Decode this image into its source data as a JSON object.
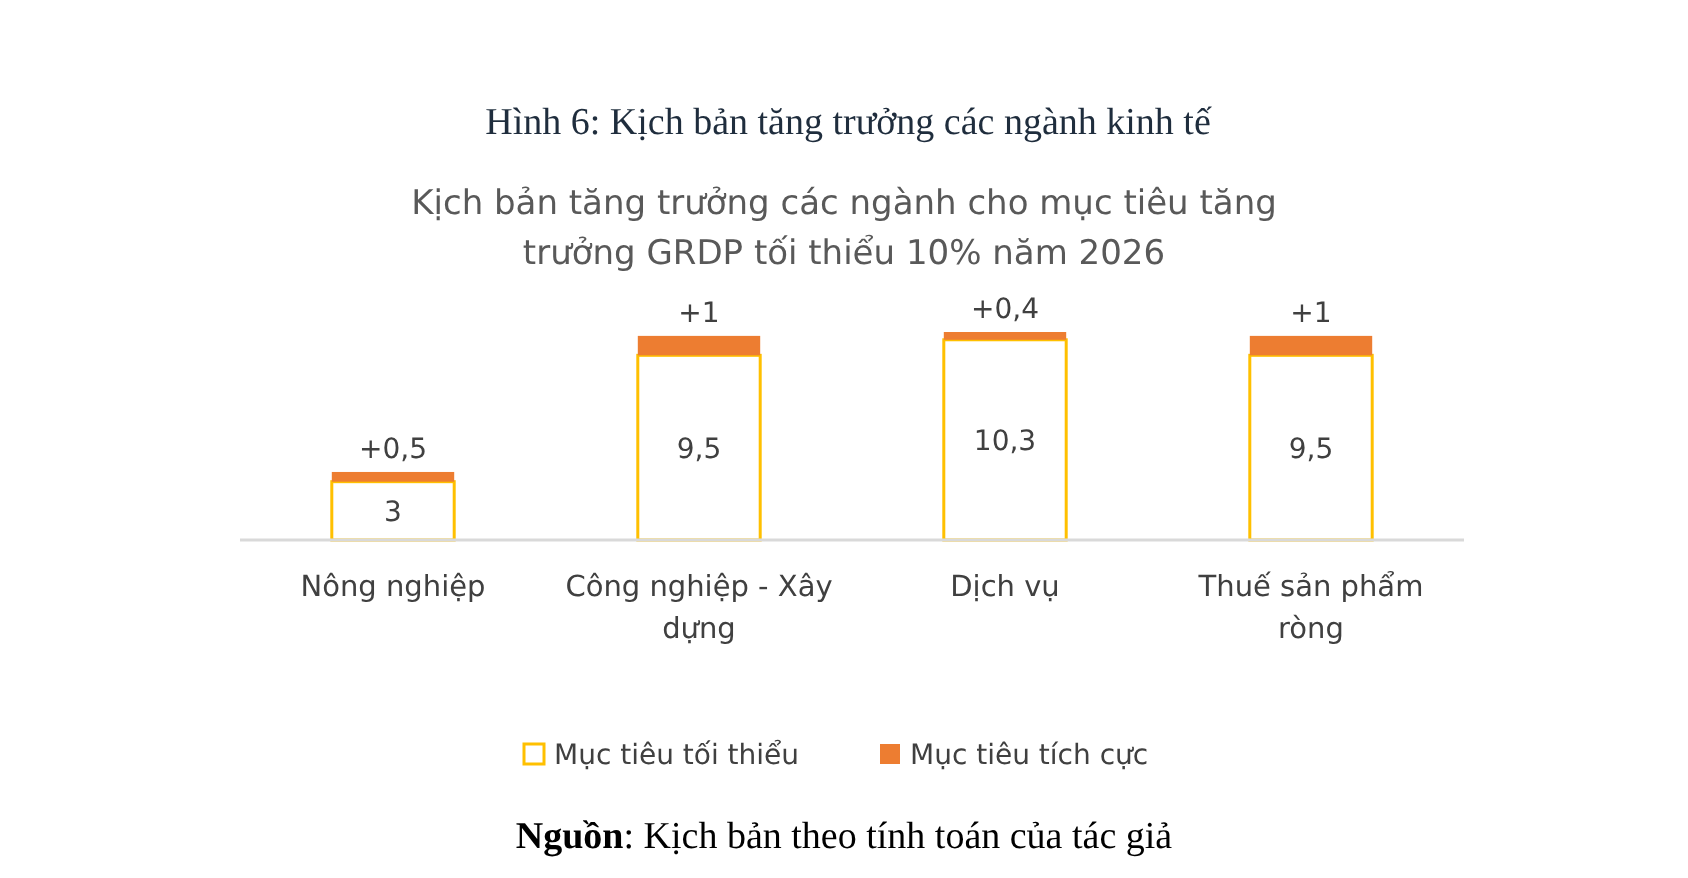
{
  "chart_data": {
    "type": "bar",
    "stacked": true,
    "title": "Hình 6: Kịch bản tăng trưởng các ngành kinh tế",
    "subtitle": "Kịch bản tăng trưởng các ngành cho mục tiêu tăng trưởng GRDP tối thiểu 10% năm 2026",
    "categories": [
      "Nông nghiệp",
      "Công nghiệp - Xây dựng",
      "Dịch vụ",
      "Thuế sản phẩm ròng"
    ],
    "series": [
      {
        "name": "Mục tiêu tối thiểu",
        "color": "#ffc000",
        "values": [
          3,
          9.5,
          10.3,
          9.5
        ],
        "value_labels": [
          "3",
          "9,5",
          "10,3",
          "9,5"
        ]
      },
      {
        "name": "Mục tiêu tích cực",
        "color": "#ed7d31",
        "values": [
          0.5,
          1,
          0.4,
          1
        ],
        "value_labels": [
          "+0,5",
          "+1",
          "+0,4",
          "+1"
        ]
      }
    ],
    "legend": "bottom",
    "grid": false,
    "annotations": [
      "Nguồn: Kịch bản theo tính toán của tác giả"
    ]
  }
}
